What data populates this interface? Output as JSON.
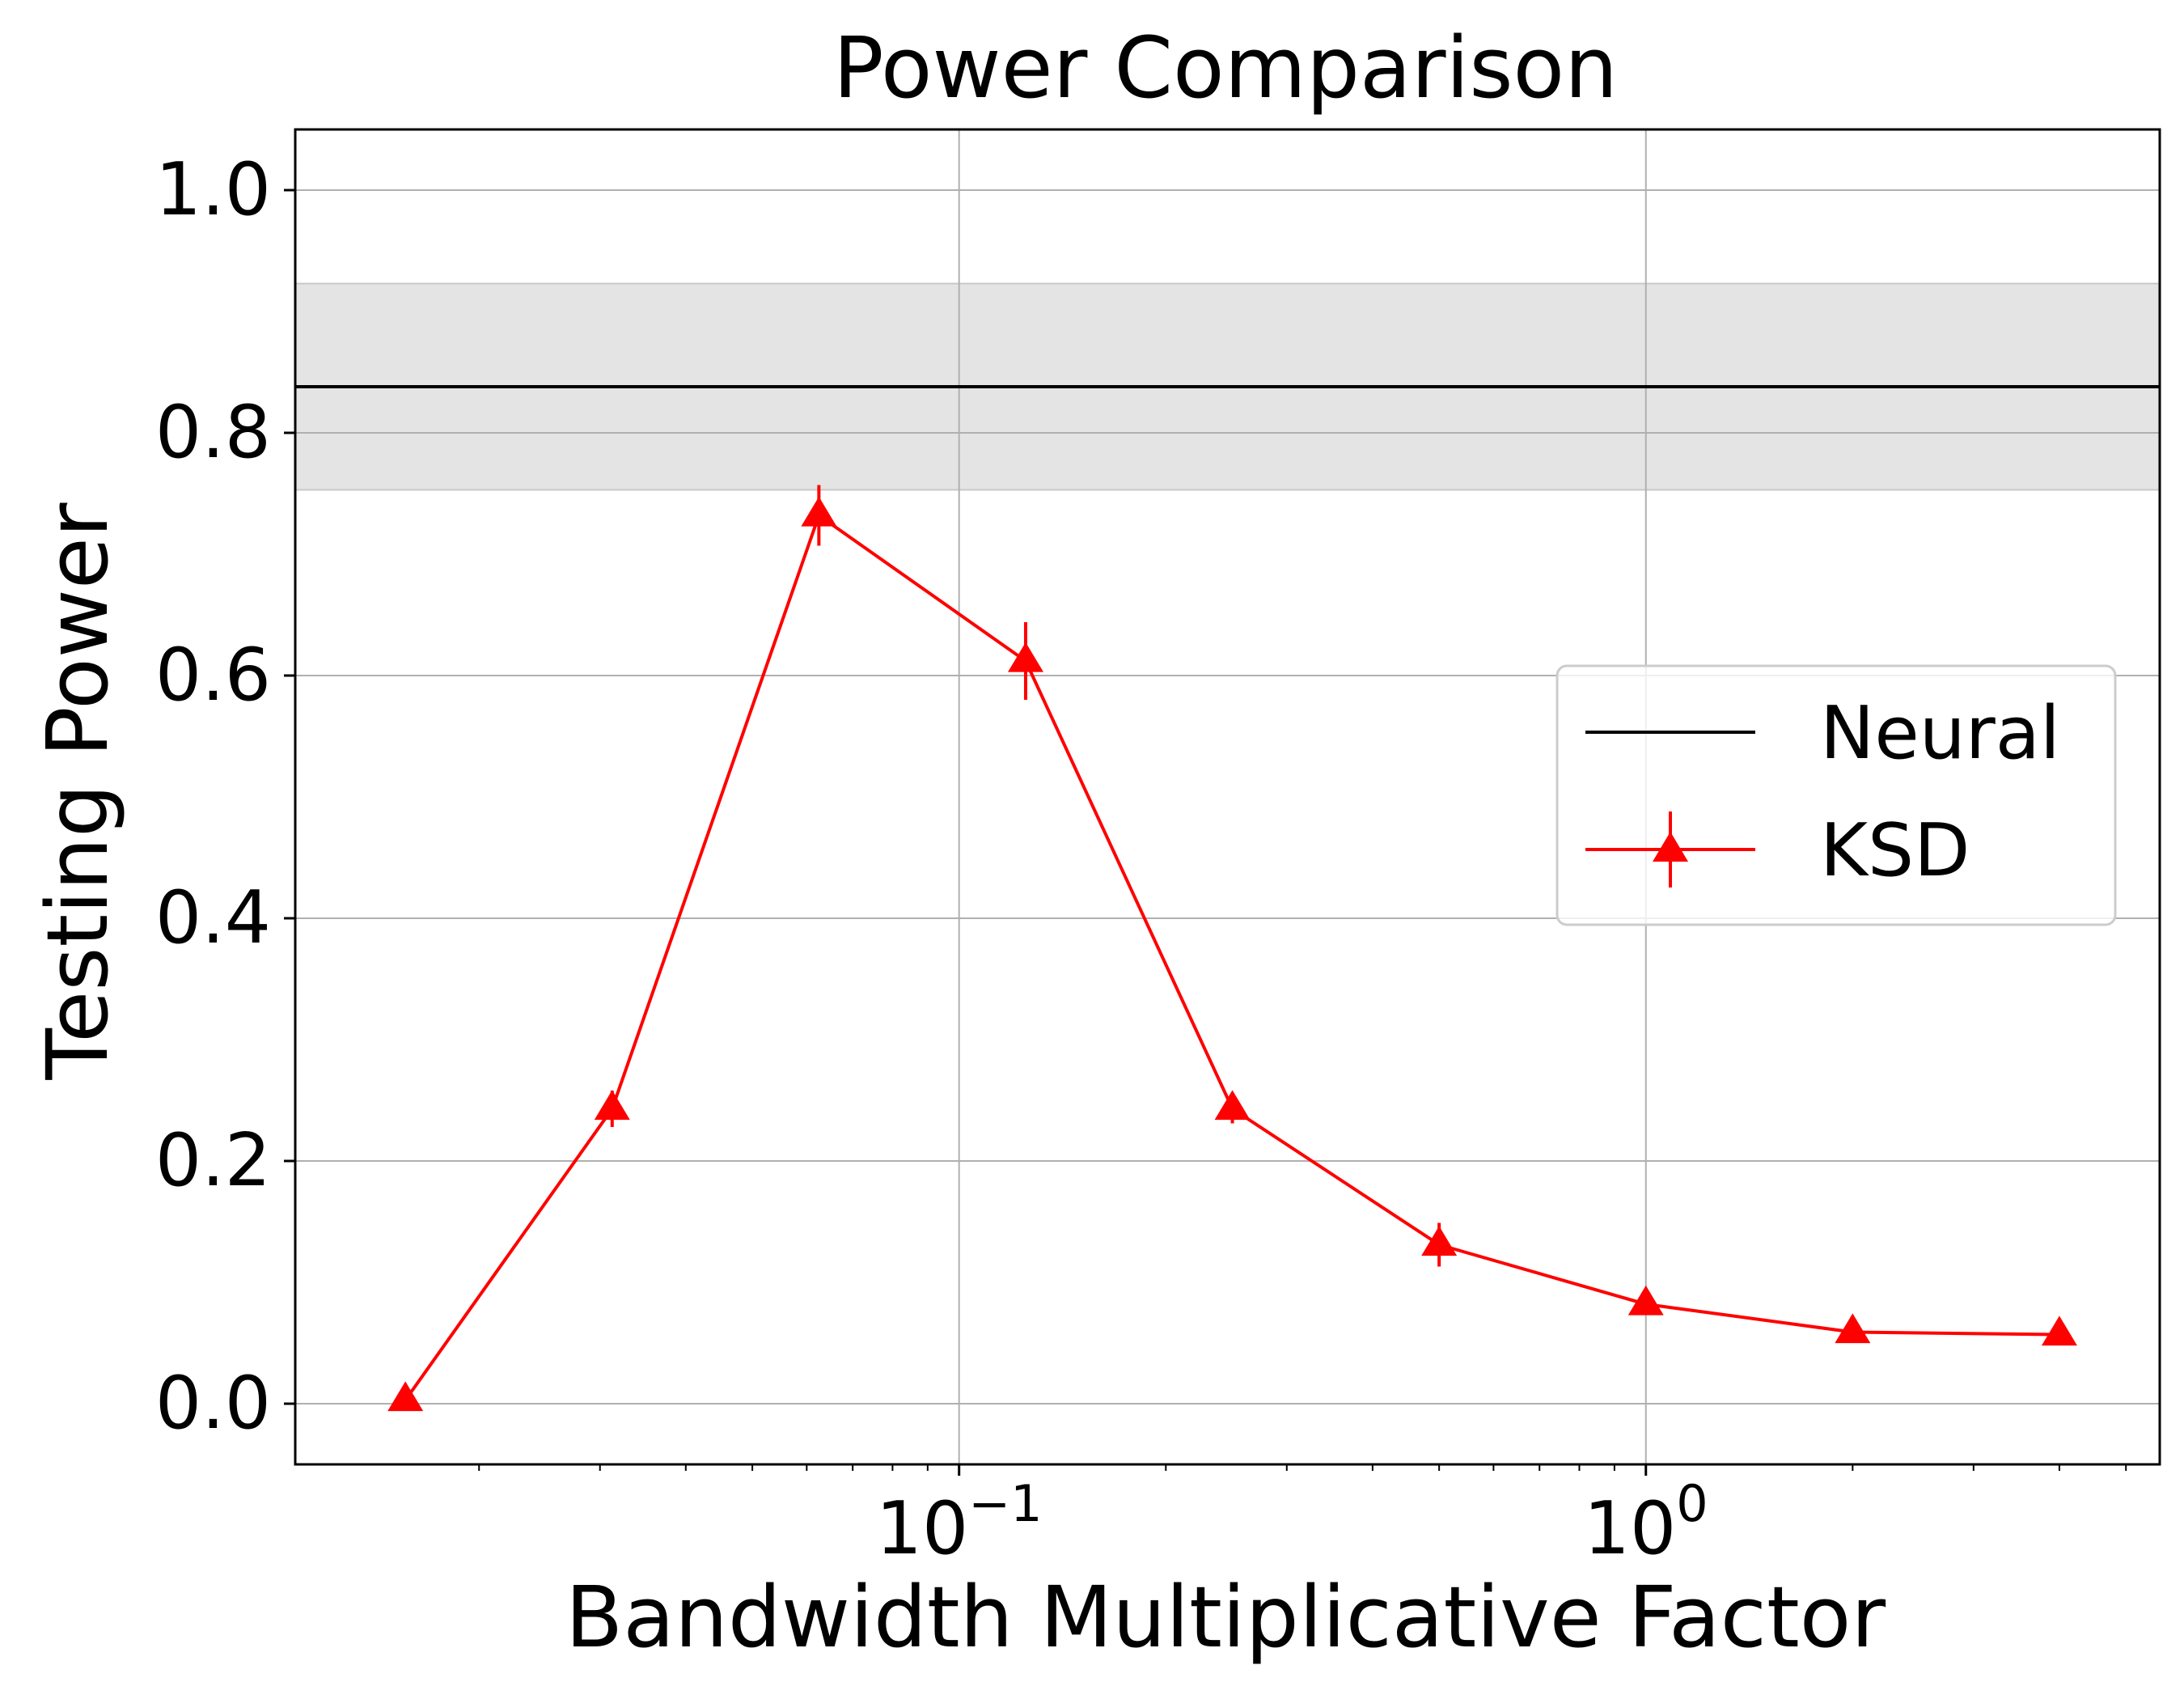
{
  "chart_data": {
    "type": "line",
    "title": "Power Comparison",
    "xlabel": "Bandwidth Multiplicative Factor",
    "ylabel": "Testing Power",
    "xscale": "log",
    "xlim": [
      0.0108,
      5.6
    ],
    "ylim": [
      -0.05,
      1.05
    ],
    "grid": true,
    "y_ticks": [
      {
        "value": 0.0,
        "label": "0.0"
      },
      {
        "value": 0.2,
        "label": "0.2"
      },
      {
        "value": 0.4,
        "label": "0.4"
      },
      {
        "value": 0.6,
        "label": "0.6"
      },
      {
        "value": 0.8,
        "label": "0.8"
      },
      {
        "value": 1.0,
        "label": "1.0"
      }
    ],
    "x_ticks": [
      {
        "value": 0.1,
        "base": "10",
        "exponent": "−1"
      },
      {
        "value": 1.0,
        "base": "10",
        "exponent": "0"
      }
    ],
    "legend": {
      "placement": "center-right",
      "entries": [
        "Neural",
        "KSD"
      ]
    },
    "series": [
      {
        "name": "Neural",
        "kind": "hline",
        "value": 0.838,
        "band": [
          0.753,
          0.923
        ],
        "color": "#000000",
        "band_color": "#e4e4e4"
      },
      {
        "name": "KSD",
        "kind": "line-errorbar",
        "color": "#ff0000",
        "marker": "triangle",
        "x": [
          0.015625,
          0.03125,
          0.0625,
          0.125,
          0.25,
          0.5,
          1,
          2,
          4
        ],
        "y": [
          0.003,
          0.243,
          0.732,
          0.612,
          0.243,
          0.131,
          0.082,
          0.059,
          0.057
        ],
        "yerr": [
          0.0,
          0.015,
          0.025,
          0.032,
          0.012,
          0.018,
          0.008,
          0.006,
          0.005
        ]
      }
    ]
  }
}
